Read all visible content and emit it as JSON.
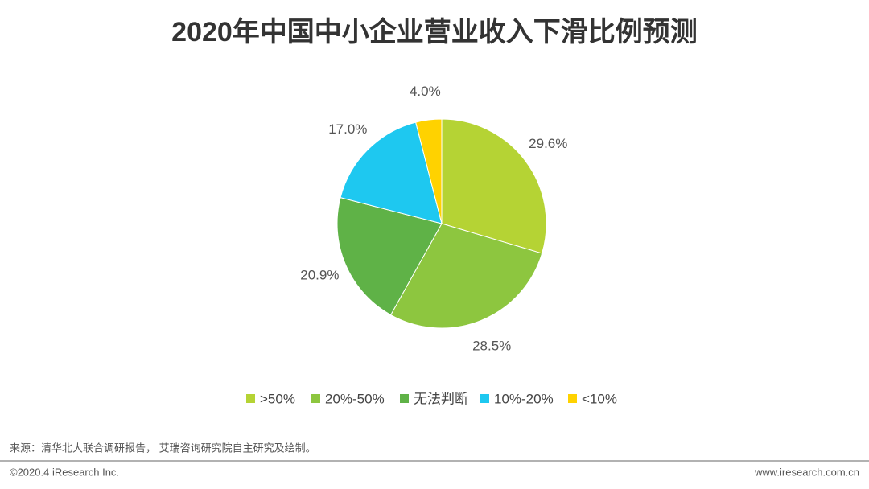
{
  "chart_data": {
    "type": "pie",
    "title": "2020年中国中小企业营业收入下滑比例预测",
    "categories": [
      ">50%",
      "20%-50%",
      "无法判断",
      "10%-20%",
      "<10%"
    ],
    "values": [
      29.6,
      28.5,
      20.9,
      17.0,
      4.0
    ],
    "value_labels": [
      "29.6%",
      "28.5%",
      "20.9%",
      "17.0%",
      "4.0%"
    ],
    "colors": [
      "#b5d334",
      "#8dc63f",
      "#5fb247",
      "#1ec8f0",
      "#ffd200"
    ],
    "legend": "bottom"
  },
  "source": "来源：清华北大联合调研报告， 艾瑞咨询研究院自主研究及绘制。",
  "footer": {
    "left": "©2020.4 iResearch Inc.",
    "right": "www.iresearch.com.cn"
  }
}
